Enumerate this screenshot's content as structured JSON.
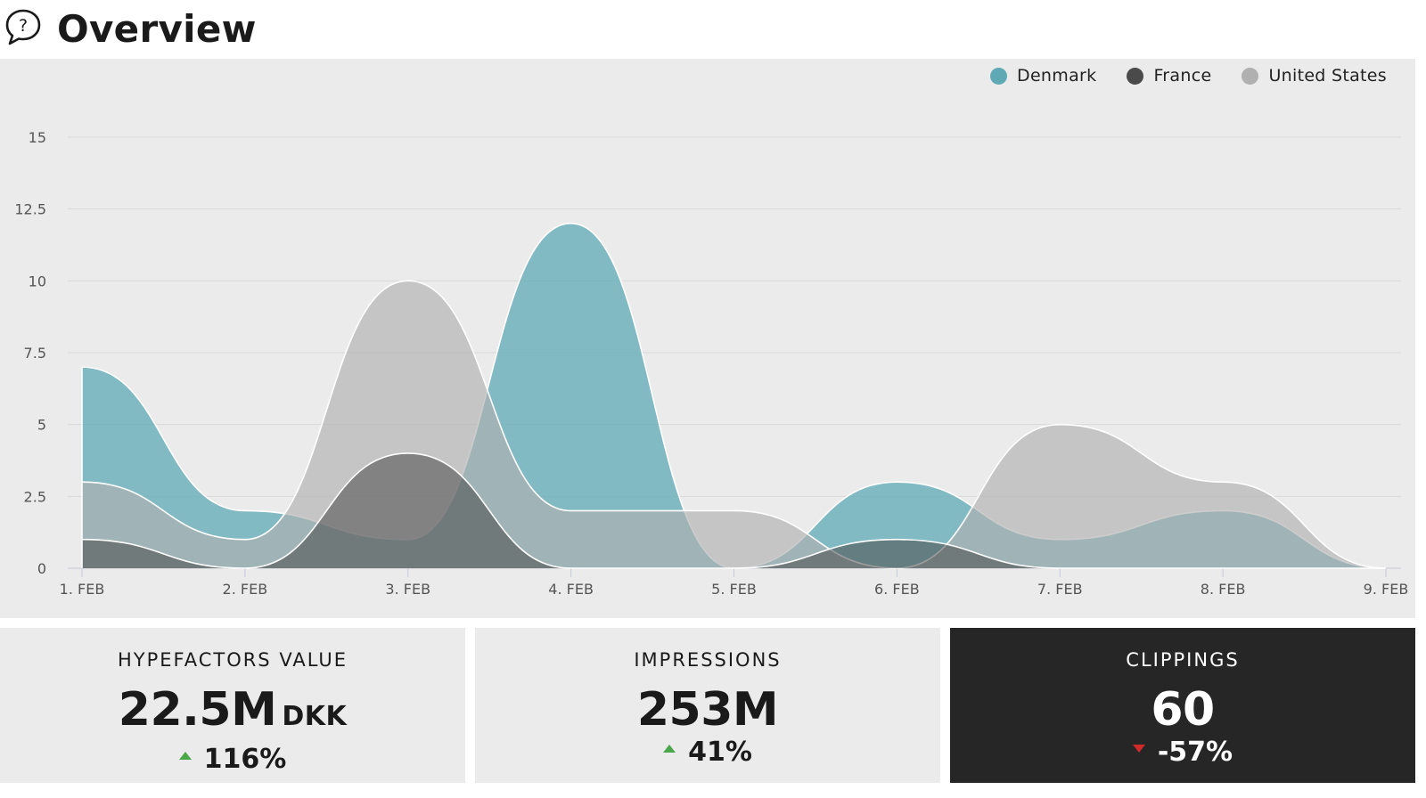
{
  "header": {
    "title": "Overview",
    "help_icon": "question-speech-bubble-icon"
  },
  "colors": {
    "denmark": "#5fa9b5",
    "france": "#4a4a4a",
    "united_states": "#b0b0b0",
    "panel_bg": "#ebebeb",
    "dark_card_bg": "#262626",
    "up": "#4aa84a",
    "down": "#d02a2a"
  },
  "chart_data": {
    "type": "area",
    "title": "",
    "xlabel": "",
    "ylabel": "",
    "categories": [
      "1. FEB",
      "2. FEB",
      "3. FEB",
      "4. FEB",
      "5. FEB",
      "6. FEB",
      "7. FEB",
      "8. FEB",
      "9. FEB"
    ],
    "ylim": [
      0,
      15
    ],
    "yticks": [
      "0",
      "2.5",
      "5",
      "7.5",
      "10",
      "12.5",
      "15"
    ],
    "grid": true,
    "legend_position": "top-right",
    "series": [
      {
        "name": "Denmark",
        "color": "#5fa9b5",
        "values": [
          7,
          2,
          1,
          12,
          0,
          3,
          1,
          2,
          0
        ]
      },
      {
        "name": "France",
        "color": "#4a4a4a",
        "values": [
          1,
          0,
          4,
          0,
          0,
          1,
          0,
          0,
          0
        ]
      },
      {
        "name": "United States",
        "color": "#b0b0b0",
        "values": [
          3,
          1,
          10,
          2,
          2,
          0,
          5,
          3,
          0
        ]
      }
    ]
  },
  "cards": [
    {
      "label": "HYPEFACTORS VALUE",
      "value": "22.5M",
      "unit": "DKK",
      "change": "116%",
      "direction": "up"
    },
    {
      "label": "IMPRESSIONS",
      "value": "253M",
      "unit": "",
      "change": "41%",
      "direction": "up"
    },
    {
      "label": "CLIPPINGS",
      "value": "60",
      "unit": "",
      "change": "-57%",
      "direction": "down"
    }
  ]
}
